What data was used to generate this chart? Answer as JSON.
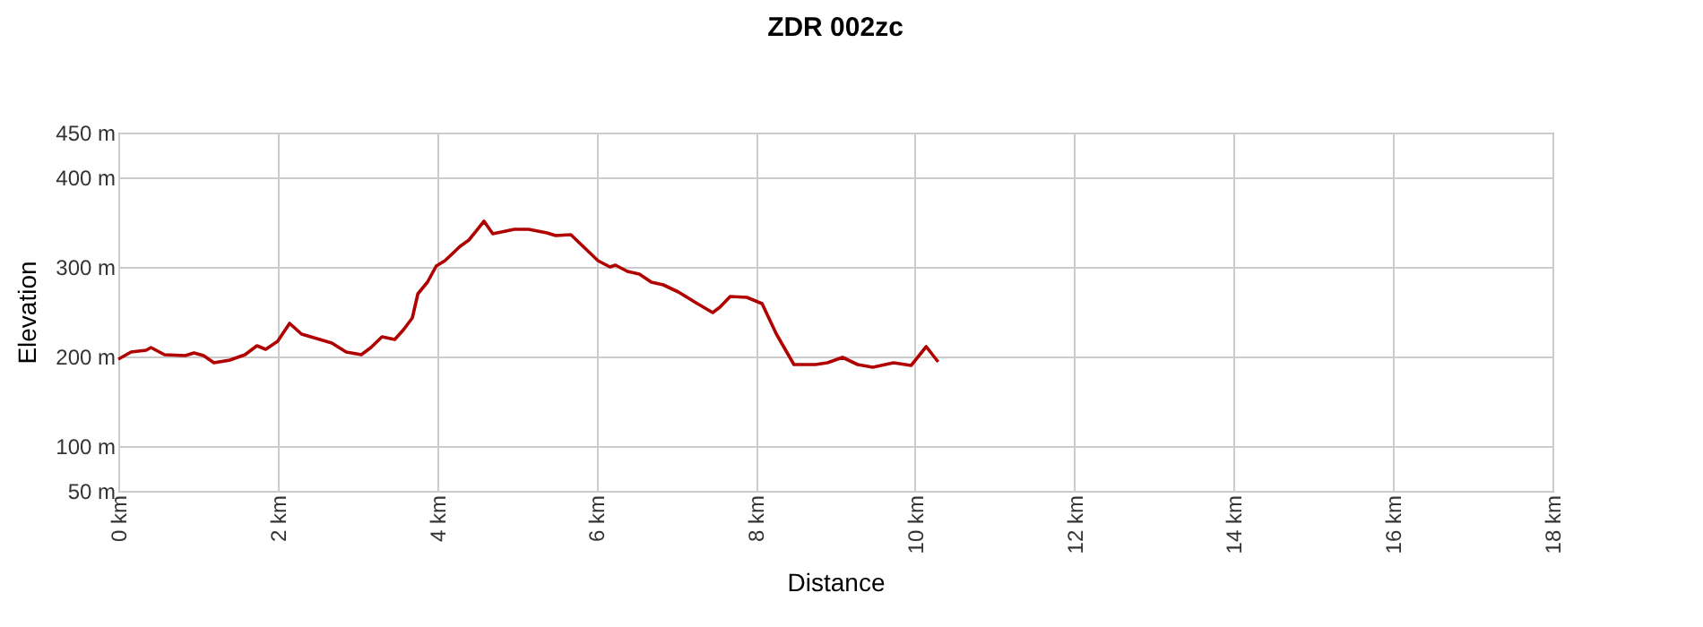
{
  "chart_data": {
    "type": "line",
    "title": "ZDR 002zc",
    "xlabel": "Distance",
    "ylabel": "Elevation",
    "xlim": [
      0,
      18
    ],
    "ylim": [
      50,
      450
    ],
    "xticks": [
      {
        "value": 0,
        "label": "0 km"
      },
      {
        "value": 2,
        "label": "2 km"
      },
      {
        "value": 4,
        "label": "4 km"
      },
      {
        "value": 6,
        "label": "6 km"
      },
      {
        "value": 8,
        "label": "8 km"
      },
      {
        "value": 10,
        "label": "10 km"
      },
      {
        "value": 12,
        "label": "12 km"
      },
      {
        "value": 14,
        "label": "14 km"
      },
      {
        "value": 16,
        "label": "16 km"
      },
      {
        "value": 18,
        "label": "18 km"
      }
    ],
    "yticks": [
      {
        "value": 50,
        "label": "50 m"
      },
      {
        "value": 100,
        "label": "100 m"
      },
      {
        "value": 200,
        "label": "200 m"
      },
      {
        "value": 300,
        "label": "300 m"
      },
      {
        "value": 400,
        "label": "400 m"
      },
      {
        "value": 450,
        "label": "450 m"
      }
    ],
    "grid": true,
    "marker": "none",
    "line_style": "solid",
    "series": [
      {
        "color": "#b00000",
        "x": [
          0,
          0.16,
          0.35,
          0.41,
          0.58,
          0.84,
          0.95,
          1.07,
          1.2,
          1.4,
          1.59,
          1.74,
          1.85,
          2.0,
          2.15,
          2.3,
          2.53,
          2.68,
          2.86,
          3.05,
          3.17,
          3.31,
          3.47,
          3.58,
          3.69,
          3.76,
          3.88,
          3.99,
          4.1,
          4.29,
          4.4,
          4.59,
          4.7,
          4.97,
          5.15,
          5.38,
          5.49,
          5.68,
          6.02,
          6.17,
          6.24,
          6.39,
          6.54,
          6.69,
          6.84,
          7.03,
          7.25,
          7.46,
          7.55,
          7.68,
          7.89,
          8.08,
          8.26,
          8.48,
          8.75,
          8.9,
          9.09,
          9.28,
          9.47,
          9.73,
          9.95,
          10.14,
          10.29
        ],
        "values": [
          197,
          205,
          207,
          210,
          202,
          201,
          204,
          201,
          193,
          196,
          202,
          212,
          208,
          217,
          237,
          225,
          219,
          215,
          205,
          202,
          210,
          222,
          219,
          230,
          243,
          270,
          283,
          301,
          307,
          323,
          330,
          351,
          337,
          342,
          342,
          338,
          335,
          336,
          307,
          300,
          302,
          295,
          292,
          283,
          280,
          272,
          260,
          249,
          255,
          267,
          266,
          259,
          225,
          191,
          191,
          193,
          199,
          191,
          188,
          193,
          190,
          211,
          194
        ]
      }
    ]
  }
}
